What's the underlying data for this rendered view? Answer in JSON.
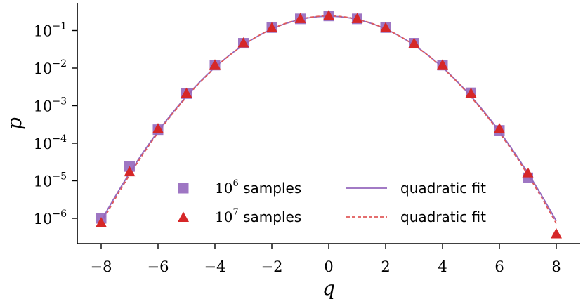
{
  "chart_data": {
    "type": "scatter",
    "xlabel": "q",
    "ylabel": "p",
    "xlim": [
      -8.8,
      8.8
    ],
    "ylim_log10": [
      -6.7,
      -0.3
    ],
    "y_scale": "log",
    "grid": false,
    "legend_position": "bottom-center",
    "x_ticks": [
      -8,
      -6,
      -4,
      -2,
      0,
      2,
      4,
      6,
      8
    ],
    "x_tick_labels": [
      "−8",
      "−6",
      "−4",
      "−2",
      "0",
      "2",
      "4",
      "6",
      "8"
    ],
    "y_ticks": [
      -6,
      -5,
      -4,
      -3,
      -2,
      -1
    ],
    "y_tick_labels": [
      {
        "base": "10",
        "exp": "−6"
      },
      {
        "base": "10",
        "exp": "−5"
      },
      {
        "base": "10",
        "exp": "−4"
      },
      {
        "base": "10",
        "exp": "−3"
      },
      {
        "base": "10",
        "exp": "−2"
      },
      {
        "base": "10",
        "exp": "−1"
      }
    ],
    "series": [
      {
        "legend_base": "10",
        "legend_exp": "6",
        "legend_suffix": " samples",
        "marker": "square",
        "color": "#9467bd",
        "x": [
          -8,
          -7,
          -6,
          -5,
          -4,
          -3,
          -2,
          -1,
          0,
          1,
          2,
          3,
          4,
          5,
          6,
          7
        ],
        "y": [
          1e-06,
          2.4e-05,
          0.00023,
          0.0021,
          0.012,
          0.046,
          0.12,
          0.205,
          0.245,
          0.205,
          0.12,
          0.046,
          0.012,
          0.0022,
          0.00022,
          1.2e-05
        ]
      },
      {
        "legend_base": "10",
        "legend_exp": "7",
        "legend_suffix": " samples",
        "marker": "triangle",
        "color": "#d62728",
        "x": [
          -8,
          -7,
          -6,
          -5,
          -4,
          -3,
          -2,
          -1,
          0,
          1,
          2,
          3,
          4,
          5,
          6,
          7,
          8
        ],
        "y": [
          7.5e-07,
          1.7e-05,
          0.00024,
          0.0021,
          0.012,
          0.046,
          0.116,
          0.205,
          0.245,
          0.205,
          0.116,
          0.045,
          0.012,
          0.0021,
          0.00024,
          1.6e-05,
          3.8e-07
        ]
      }
    ],
    "fits": [
      {
        "label": "quadratic fit",
        "color": "#9467bd",
        "dash": "solid",
        "log10_peak": -0.62,
        "log10_at_8": -6.07
      },
      {
        "label": "quadratic fit",
        "color": "#e05a5a",
        "dash": "dashed",
        "log10_peak": -0.61,
        "log10_at_8": -6.14
      }
    ]
  }
}
